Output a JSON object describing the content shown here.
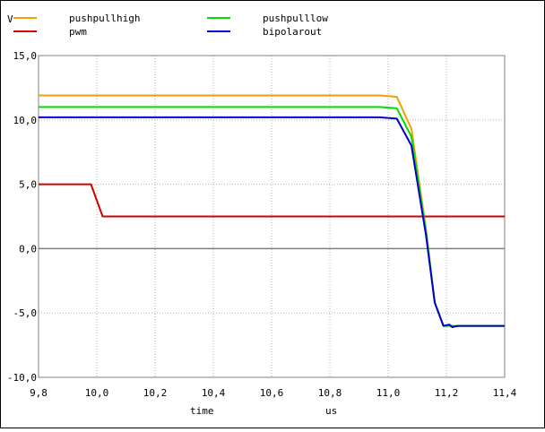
{
  "chart_data": {
    "type": "line",
    "ylabel": "V",
    "xlabel": "time",
    "xunit": "us",
    "xlim": [
      9.8,
      11.4
    ],
    "ylim": [
      -10.0,
      15.0
    ],
    "xticks": [
      9.8,
      10.0,
      10.2,
      10.4,
      10.6,
      10.8,
      11.0,
      11.2,
      11.4
    ],
    "xtick_labels": [
      "9,8",
      "10,0",
      "10,2",
      "10,4",
      "10,6",
      "10,8",
      "11,0",
      "11,2",
      "11,4"
    ],
    "yticks": [
      15.0,
      10.0,
      5.0,
      0.0,
      -5.0,
      -10.0
    ],
    "ytick_labels": [
      "15,0",
      "10,0",
      "5,0",
      "0,0",
      "-5,0",
      "-10,0"
    ],
    "grid": true,
    "legend_position": "top",
    "series": [
      {
        "name": "pushpullhigh",
        "color": "#f0a000",
        "x": [
          9.8,
          10.97,
          11.03,
          11.08,
          11.13,
          11.16,
          11.19,
          11.4
        ],
        "y": [
          11.9,
          11.9,
          11.8,
          9.3,
          1.5,
          -4.2,
          -6.0,
          -6.0
        ]
      },
      {
        "name": "pwm",
        "color": "#d00000",
        "x": [
          9.8,
          9.98,
          10.02,
          11.4
        ],
        "y": [
          5.0,
          5.0,
          2.5,
          2.5
        ]
      },
      {
        "name": "pushpulllow",
        "color": "#00dd00",
        "x": [
          9.8,
          10.97,
          11.03,
          11.08,
          11.13,
          11.16,
          11.19,
          11.4
        ],
        "y": [
          11.0,
          11.0,
          10.9,
          8.7,
          1.3,
          -4.2,
          -6.0,
          -6.0
        ]
      },
      {
        "name": "bipolarout",
        "color": "#0000cc",
        "x": [
          9.8,
          10.97,
          11.03,
          11.08,
          11.13,
          11.16,
          11.19,
          11.21,
          11.22,
          11.24,
          11.4
        ],
        "y": [
          10.2,
          10.2,
          10.1,
          8.0,
          1.0,
          -4.2,
          -6.0,
          -5.9,
          -6.1,
          -6.0,
          -6.0
        ]
      }
    ]
  }
}
